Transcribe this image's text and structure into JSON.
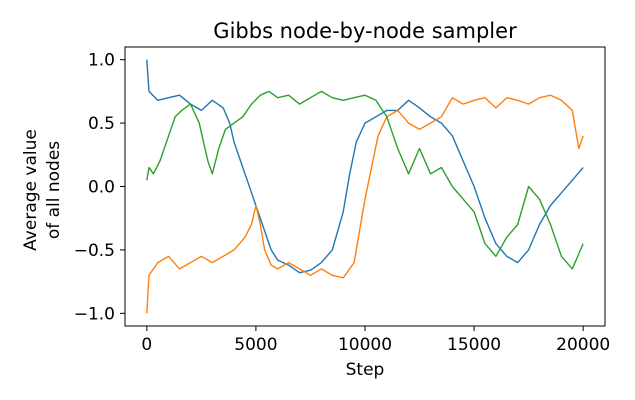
{
  "chart_data": {
    "type": "line",
    "title": "Gibbs node-by-node sampler",
    "xlabel": "Step",
    "ylabel_lines": [
      "Average value",
      "of all nodes"
    ],
    "xlim": [
      -1000,
      21000
    ],
    "ylim": [
      -1.1,
      1.1
    ],
    "xticks": [
      0,
      5000,
      10000,
      15000,
      20000
    ],
    "xtick_labels": [
      "0",
      "5000",
      "10000",
      "15000",
      "20000"
    ],
    "yticks": [
      -1.0,
      -0.5,
      0.0,
      0.5,
      1.0
    ],
    "ytick_labels": [
      "−1.0",
      "−0.5",
      "0.0",
      "0.5",
      "1.0"
    ],
    "grid": false,
    "legend": "none",
    "series": [
      {
        "color": "#1f77b4",
        "x": [
          0,
          100,
          500,
          1000,
          1500,
          2000,
          2500,
          3000,
          3500,
          3800,
          4000,
          4300,
          4600,
          4900,
          5100,
          5400,
          5700,
          6000,
          6500,
          7000,
          7500,
          8000,
          8500,
          9000,
          9300,
          9600,
          10000,
          10500,
          11000,
          11500,
          12000,
          12500,
          13000,
          13500,
          14000,
          14500,
          15000,
          15500,
          16000,
          16500,
          17000,
          17500,
          18000,
          18500,
          19000,
          19500,
          20000
        ],
        "y": [
          1.0,
          0.75,
          0.68,
          0.7,
          0.72,
          0.65,
          0.6,
          0.68,
          0.62,
          0.5,
          0.35,
          0.2,
          0.05,
          -0.1,
          -0.2,
          -0.35,
          -0.5,
          -0.58,
          -0.62,
          -0.68,
          -0.66,
          -0.6,
          -0.5,
          -0.2,
          0.1,
          0.35,
          0.5,
          0.55,
          0.6,
          0.6,
          0.68,
          0.62,
          0.55,
          0.5,
          0.4,
          0.2,
          0.0,
          -0.25,
          -0.45,
          -0.55,
          -0.6,
          -0.5,
          -0.3,
          -0.15,
          -0.05,
          0.05,
          0.15
        ]
      },
      {
        "color": "#ff7f0e",
        "x": [
          0,
          100,
          500,
          1000,
          1500,
          2000,
          2500,
          3000,
          3500,
          4000,
          4500,
          4800,
          5000,
          5200,
          5400,
          5700,
          6000,
          6500,
          7000,
          7500,
          8000,
          8500,
          9000,
          9500,
          9800,
          10000,
          10300,
          10600,
          11000,
          11500,
          12000,
          12500,
          13000,
          13500,
          14000,
          14500,
          15000,
          15500,
          16000,
          16500,
          17000,
          17500,
          18000,
          18500,
          19000,
          19500,
          19800,
          20000
        ],
        "y": [
          -1.0,
          -0.7,
          -0.6,
          -0.55,
          -0.65,
          -0.6,
          -0.55,
          -0.6,
          -0.55,
          -0.5,
          -0.4,
          -0.3,
          -0.15,
          -0.3,
          -0.5,
          -0.62,
          -0.65,
          -0.6,
          -0.65,
          -0.7,
          -0.65,
          -0.7,
          -0.72,
          -0.6,
          -0.3,
          -0.1,
          0.15,
          0.4,
          0.55,
          0.6,
          0.5,
          0.45,
          0.5,
          0.55,
          0.7,
          0.65,
          0.68,
          0.7,
          0.62,
          0.7,
          0.68,
          0.65,
          0.7,
          0.72,
          0.68,
          0.6,
          0.3,
          0.4
        ]
      },
      {
        "color": "#2ca02c",
        "x": [
          0,
          100,
          300,
          600,
          1000,
          1300,
          1600,
          2000,
          2400,
          2800,
          3000,
          3300,
          3600,
          4000,
          4400,
          4800,
          5200,
          5600,
          6000,
          6500,
          7000,
          7500,
          8000,
          8500,
          9000,
          9500,
          10000,
          10500,
          11000,
          11500,
          12000,
          12500,
          13000,
          13500,
          14000,
          14500,
          15000,
          15500,
          16000,
          16500,
          17000,
          17500,
          18000,
          18500,
          19000,
          19500,
          20000
        ],
        "y": [
          0.05,
          0.15,
          0.1,
          0.2,
          0.4,
          0.55,
          0.6,
          0.65,
          0.5,
          0.2,
          0.1,
          0.3,
          0.45,
          0.5,
          0.55,
          0.65,
          0.72,
          0.75,
          0.7,
          0.72,
          0.65,
          0.7,
          0.75,
          0.7,
          0.68,
          0.7,
          0.72,
          0.68,
          0.55,
          0.3,
          0.1,
          0.3,
          0.1,
          0.15,
          0.0,
          -0.1,
          -0.2,
          -0.45,
          -0.55,
          -0.4,
          -0.3,
          0.0,
          -0.1,
          -0.3,
          -0.55,
          -0.65,
          -0.45
        ]
      }
    ]
  }
}
